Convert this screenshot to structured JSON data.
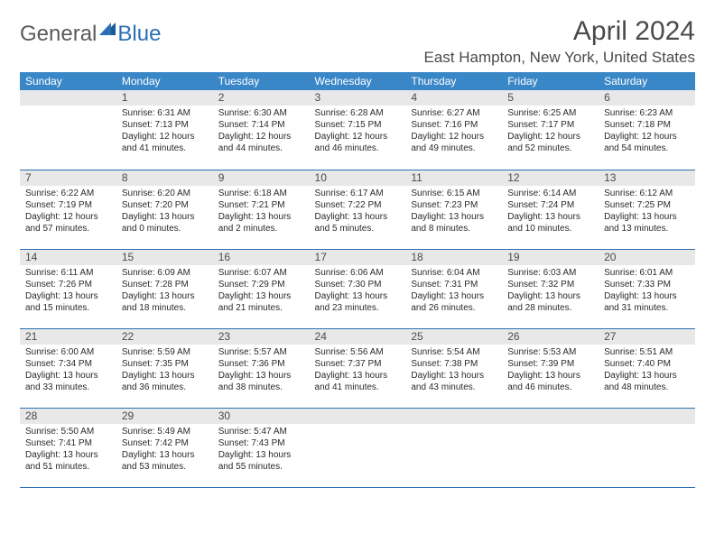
{
  "logo": {
    "general": "General",
    "blue": "Blue"
  },
  "header": {
    "month_title": "April 2024",
    "location": "East Hampton, New York, United States"
  },
  "colors": {
    "header_bg": "#3a87c8",
    "header_text": "#ffffff",
    "daynum_bg": "#e8e8e8",
    "row_divider": "#2b6fb5",
    "body_text": "#2a2a2a",
    "title_text": "#4a4a4a",
    "logo_general": "#5a5a5a",
    "logo_blue": "#2b6fb5"
  },
  "day_headers": [
    "Sunday",
    "Monday",
    "Tuesday",
    "Wednesday",
    "Thursday",
    "Friday",
    "Saturday"
  ],
  "weeks": [
    [
      {
        "blank": true
      },
      {
        "n": "1",
        "sunrise": "6:31 AM",
        "sunset": "7:13 PM",
        "daylight": "12 hours and 41 minutes."
      },
      {
        "n": "2",
        "sunrise": "6:30 AM",
        "sunset": "7:14 PM",
        "daylight": "12 hours and 44 minutes."
      },
      {
        "n": "3",
        "sunrise": "6:28 AM",
        "sunset": "7:15 PM",
        "daylight": "12 hours and 46 minutes."
      },
      {
        "n": "4",
        "sunrise": "6:27 AM",
        "sunset": "7:16 PM",
        "daylight": "12 hours and 49 minutes."
      },
      {
        "n": "5",
        "sunrise": "6:25 AM",
        "sunset": "7:17 PM",
        "daylight": "12 hours and 52 minutes."
      },
      {
        "n": "6",
        "sunrise": "6:23 AM",
        "sunset": "7:18 PM",
        "daylight": "12 hours and 54 minutes."
      }
    ],
    [
      {
        "n": "7",
        "sunrise": "6:22 AM",
        "sunset": "7:19 PM",
        "daylight": "12 hours and 57 minutes."
      },
      {
        "n": "8",
        "sunrise": "6:20 AM",
        "sunset": "7:20 PM",
        "daylight": "13 hours and 0 minutes."
      },
      {
        "n": "9",
        "sunrise": "6:18 AM",
        "sunset": "7:21 PM",
        "daylight": "13 hours and 2 minutes."
      },
      {
        "n": "10",
        "sunrise": "6:17 AM",
        "sunset": "7:22 PM",
        "daylight": "13 hours and 5 minutes."
      },
      {
        "n": "11",
        "sunrise": "6:15 AM",
        "sunset": "7:23 PM",
        "daylight": "13 hours and 8 minutes."
      },
      {
        "n": "12",
        "sunrise": "6:14 AM",
        "sunset": "7:24 PM",
        "daylight": "13 hours and 10 minutes."
      },
      {
        "n": "13",
        "sunrise": "6:12 AM",
        "sunset": "7:25 PM",
        "daylight": "13 hours and 13 minutes."
      }
    ],
    [
      {
        "n": "14",
        "sunrise": "6:11 AM",
        "sunset": "7:26 PM",
        "daylight": "13 hours and 15 minutes."
      },
      {
        "n": "15",
        "sunrise": "6:09 AM",
        "sunset": "7:28 PM",
        "daylight": "13 hours and 18 minutes."
      },
      {
        "n": "16",
        "sunrise": "6:07 AM",
        "sunset": "7:29 PM",
        "daylight": "13 hours and 21 minutes."
      },
      {
        "n": "17",
        "sunrise": "6:06 AM",
        "sunset": "7:30 PM",
        "daylight": "13 hours and 23 minutes."
      },
      {
        "n": "18",
        "sunrise": "6:04 AM",
        "sunset": "7:31 PM",
        "daylight": "13 hours and 26 minutes."
      },
      {
        "n": "19",
        "sunrise": "6:03 AM",
        "sunset": "7:32 PM",
        "daylight": "13 hours and 28 minutes."
      },
      {
        "n": "20",
        "sunrise": "6:01 AM",
        "sunset": "7:33 PM",
        "daylight": "13 hours and 31 minutes."
      }
    ],
    [
      {
        "n": "21",
        "sunrise": "6:00 AM",
        "sunset": "7:34 PM",
        "daylight": "13 hours and 33 minutes."
      },
      {
        "n": "22",
        "sunrise": "5:59 AM",
        "sunset": "7:35 PM",
        "daylight": "13 hours and 36 minutes."
      },
      {
        "n": "23",
        "sunrise": "5:57 AM",
        "sunset": "7:36 PM",
        "daylight": "13 hours and 38 minutes."
      },
      {
        "n": "24",
        "sunrise": "5:56 AM",
        "sunset": "7:37 PM",
        "daylight": "13 hours and 41 minutes."
      },
      {
        "n": "25",
        "sunrise": "5:54 AM",
        "sunset": "7:38 PM",
        "daylight": "13 hours and 43 minutes."
      },
      {
        "n": "26",
        "sunrise": "5:53 AM",
        "sunset": "7:39 PM",
        "daylight": "13 hours and 46 minutes."
      },
      {
        "n": "27",
        "sunrise": "5:51 AM",
        "sunset": "7:40 PM",
        "daylight": "13 hours and 48 minutes."
      }
    ],
    [
      {
        "n": "28",
        "sunrise": "5:50 AM",
        "sunset": "7:41 PM",
        "daylight": "13 hours and 51 minutes."
      },
      {
        "n": "29",
        "sunrise": "5:49 AM",
        "sunset": "7:42 PM",
        "daylight": "13 hours and 53 minutes."
      },
      {
        "n": "30",
        "sunrise": "5:47 AM",
        "sunset": "7:43 PM",
        "daylight": "13 hours and 55 minutes."
      },
      {
        "blank": true
      },
      {
        "blank": true
      },
      {
        "blank": true
      },
      {
        "blank": true
      }
    ]
  ]
}
